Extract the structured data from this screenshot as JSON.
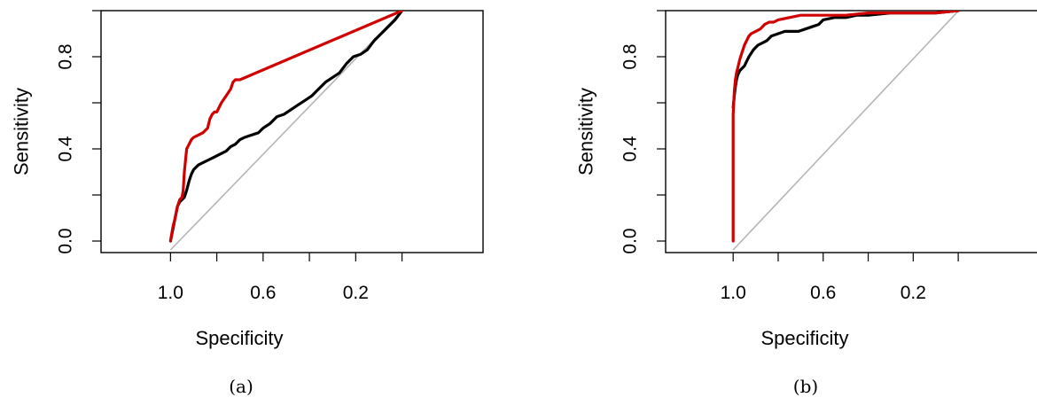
{
  "chart_data": [
    {
      "type": "line",
      "panel_label": "(a)",
      "xlabel": "Specificity",
      "ylabel": "Sensitivity",
      "xlim": [
        1.3,
        -0.35
      ],
      "ylim": [
        -0.05,
        1.0
      ],
      "x_ticks": [
        1.0,
        0.8,
        0.6,
        0.4,
        0.2,
        0.0
      ],
      "x_tick_labels": [
        "1.0",
        "",
        "0.6",
        "",
        "0.2",
        ""
      ],
      "y_ticks": [
        0.0,
        0.2,
        0.4,
        0.6,
        0.8,
        1.0
      ],
      "y_tick_labels": [
        "0.0",
        "",
        "0.4",
        "",
        "0.8",
        ""
      ],
      "grid": false,
      "reference_line": {
        "color": "#b5b5b5",
        "from": [
          1.0,
          0.0
        ],
        "to": [
          0.0,
          1.0
        ]
      },
      "series": [
        {
          "color": "#000000",
          "x": [
            1.0,
            0.99,
            0.98,
            0.97,
            0.96,
            0.95,
            0.94,
            0.93,
            0.92,
            0.91,
            0.9,
            0.88,
            0.86,
            0.84,
            0.82,
            0.8,
            0.78,
            0.76,
            0.74,
            0.72,
            0.7,
            0.68,
            0.65,
            0.62,
            0.6,
            0.57,
            0.54,
            0.51,
            0.48,
            0.45,
            0.42,
            0.39,
            0.36,
            0.33,
            0.3,
            0.27,
            0.24,
            0.21,
            0.18,
            0.15,
            0.12,
            0.09,
            0.06,
            0.03,
            0.0
          ],
          "y": [
            0.0,
            0.05,
            0.1,
            0.15,
            0.17,
            0.18,
            0.19,
            0.22,
            0.26,
            0.29,
            0.31,
            0.33,
            0.34,
            0.35,
            0.36,
            0.37,
            0.38,
            0.39,
            0.41,
            0.42,
            0.44,
            0.45,
            0.46,
            0.47,
            0.49,
            0.51,
            0.54,
            0.55,
            0.57,
            0.59,
            0.61,
            0.63,
            0.66,
            0.69,
            0.71,
            0.73,
            0.77,
            0.8,
            0.81,
            0.83,
            0.87,
            0.9,
            0.93,
            0.96,
            1.0
          ]
        },
        {
          "color": "#d10000",
          "x": [
            1.0,
            0.99,
            0.98,
            0.97,
            0.96,
            0.95,
            0.945,
            0.94,
            0.935,
            0.93,
            0.92,
            0.91,
            0.9,
            0.88,
            0.86,
            0.84,
            0.83,
            0.82,
            0.81,
            0.8,
            0.78,
            0.76,
            0.74,
            0.73,
            0.72,
            0.7,
            0.0
          ],
          "y": [
            0.0,
            0.06,
            0.1,
            0.15,
            0.18,
            0.19,
            0.22,
            0.3,
            0.35,
            0.4,
            0.42,
            0.44,
            0.45,
            0.46,
            0.47,
            0.49,
            0.53,
            0.55,
            0.56,
            0.56,
            0.6,
            0.63,
            0.66,
            0.69,
            0.7,
            0.7,
            1.0
          ]
        }
      ]
    },
    {
      "type": "line",
      "panel_label": "(b)",
      "xlabel": "Specificity",
      "ylabel": "Sensitivity",
      "xlim": [
        1.3,
        -0.35
      ],
      "ylim": [
        -0.05,
        1.0
      ],
      "x_ticks": [
        1.0,
        0.8,
        0.6,
        0.4,
        0.2,
        0.0
      ],
      "x_tick_labels": [
        "1.0",
        "",
        "0.6",
        "",
        "0.2",
        ""
      ],
      "y_ticks": [
        0.0,
        0.2,
        0.4,
        0.6,
        0.8,
        1.0
      ],
      "y_tick_labels": [
        "0.0",
        "",
        "0.4",
        "",
        "0.8",
        ""
      ],
      "grid": false,
      "reference_line": {
        "color": "#b5b5b5",
        "from": [
          1.0,
          0.0
        ],
        "to": [
          0.0,
          1.0
        ]
      },
      "series": [
        {
          "color": "#000000",
          "x": [
            1.0,
            0.995,
            0.99,
            0.985,
            0.98,
            0.97,
            0.96,
            0.95,
            0.94,
            0.93,
            0.91,
            0.89,
            0.87,
            0.85,
            0.83,
            0.8,
            0.77,
            0.74,
            0.71,
            0.68,
            0.65,
            0.62,
            0.6,
            0.55,
            0.5,
            0.45,
            0.4,
            0.3,
            0.2,
            0.1,
            0.0
          ],
          "y": [
            0.58,
            0.63,
            0.67,
            0.7,
            0.72,
            0.74,
            0.75,
            0.76,
            0.78,
            0.8,
            0.83,
            0.85,
            0.86,
            0.87,
            0.89,
            0.9,
            0.91,
            0.91,
            0.91,
            0.92,
            0.93,
            0.94,
            0.96,
            0.97,
            0.97,
            0.98,
            0.98,
            0.99,
            0.99,
            0.99,
            1.0
          ]
        },
        {
          "color": "#d10000",
          "x": [
            1.0,
            1.0,
            0.995,
            0.99,
            0.985,
            0.98,
            0.975,
            0.97,
            0.96,
            0.95,
            0.94,
            0.93,
            0.92,
            0.9,
            0.88,
            0.86,
            0.84,
            0.82,
            0.8,
            0.75,
            0.7,
            0.6,
            0.5,
            0.4,
            0.3,
            0.2,
            0.1,
            0.0
          ],
          "y": [
            0.0,
            0.55,
            0.65,
            0.7,
            0.73,
            0.75,
            0.77,
            0.79,
            0.82,
            0.85,
            0.87,
            0.89,
            0.9,
            0.91,
            0.92,
            0.94,
            0.95,
            0.95,
            0.96,
            0.97,
            0.98,
            0.98,
            0.98,
            0.99,
            0.99,
            0.99,
            0.99,
            1.0
          ]
        }
      ]
    }
  ]
}
